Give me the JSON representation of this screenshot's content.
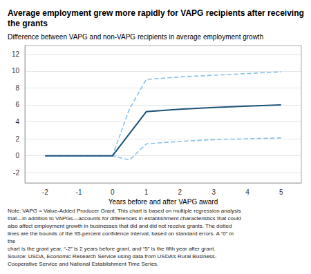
{
  "chart_data": {
    "type": "line",
    "title": "Average employment grew more rapidly for VAPG recipients after receiving the grants",
    "subtitle": "Difference between VAPG and non-VAPG recipients in average employment growth",
    "xlabel": "Years before and after VAPG award",
    "note": "Note: VAPG = Value-Added Producer Grant. This chart is based on multiple regression analysis\nthat—in addition to VAPGs—accounts for differences in establishment characteristics that could\nalso affect employment growth in businesses that did and did not receive grants. The dotted\nlines are the bounds of the 95-percent confidence interval, based on standard errors. A “0” in the\nchart is the grant year, “-2” is 2 years before grant, and “5” is the fifth year after grant.\nSource: USDA, Economic Research Service using data from USDA’s Rural Business-\nCooperative Service and National Establishment Time Series.",
    "xlim": [
      -2.6,
      5.6
    ],
    "ylim": [
      -3.2,
      13
    ],
    "xticks": [
      -2,
      -1,
      0,
      1,
      2,
      3,
      4,
      5
    ],
    "yticks": [
      -2,
      0,
      2,
      4,
      6,
      8,
      10,
      12
    ],
    "grid": true,
    "series": [
      {
        "x": [
          -2,
          -1.5,
          -1,
          -0.5,
          0,
          0.5,
          1,
          2,
          3,
          4,
          5
        ],
        "values": [
          0,
          0,
          0,
          0,
          0,
          5.5,
          9.0,
          9.3,
          9.5,
          9.7,
          9.9
        ],
        "color": "#85c1e9",
        "line_style": "dashed"
      },
      {
        "x": [
          -2,
          -1.5,
          -1,
          -0.5,
          0,
          0.5,
          1,
          2,
          3,
          4,
          5
        ],
        "values": [
          0,
          0,
          0,
          0,
          0,
          -0.5,
          1.4,
          1.7,
          1.9,
          2.0,
          2.1
        ],
        "color": "#85c1e9",
        "line_style": "dashed"
      },
      {
        "x": [
          -2,
          -1.5,
          -1,
          -0.5,
          0,
          1,
          2,
          3,
          4,
          5
        ],
        "values": [
          0,
          0,
          0,
          0,
          0,
          5.2,
          5.5,
          5.7,
          5.85,
          6.0
        ],
        "color": "#1a5276",
        "line_style": "solid"
      }
    ]
  }
}
